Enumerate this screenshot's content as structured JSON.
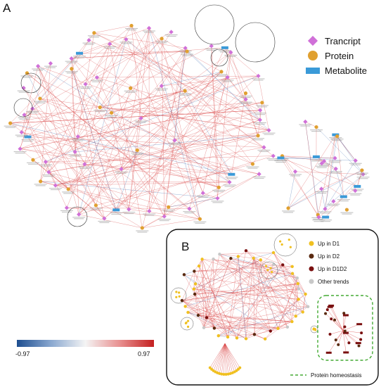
{
  "panels": {
    "a": "A",
    "b": "B"
  },
  "legend_a": {
    "transcript": "Trancript",
    "protein": "Protein",
    "metabolite": "Metabolite"
  },
  "legend_b": {
    "d1": "Up in D1",
    "d2": "Up in D2",
    "d1d2": "Up in D1D2",
    "other": "Other trends",
    "homeostasis": "Protein homeostasis"
  },
  "colorbar": {
    "min": "-0.97",
    "max": "0.97"
  },
  "colors": {
    "transcript": "#d070d8",
    "protein": "#e0a030",
    "metabolite": "#3a9ad8",
    "d1": "#f0c020",
    "d2": "#5a2a10",
    "d1d2": "#7a1010",
    "other": "#c8c8c8",
    "positive_edge": "#d84040",
    "negative_edge": "#3a6ab0",
    "homeostasis_box": "#44aa33"
  }
}
